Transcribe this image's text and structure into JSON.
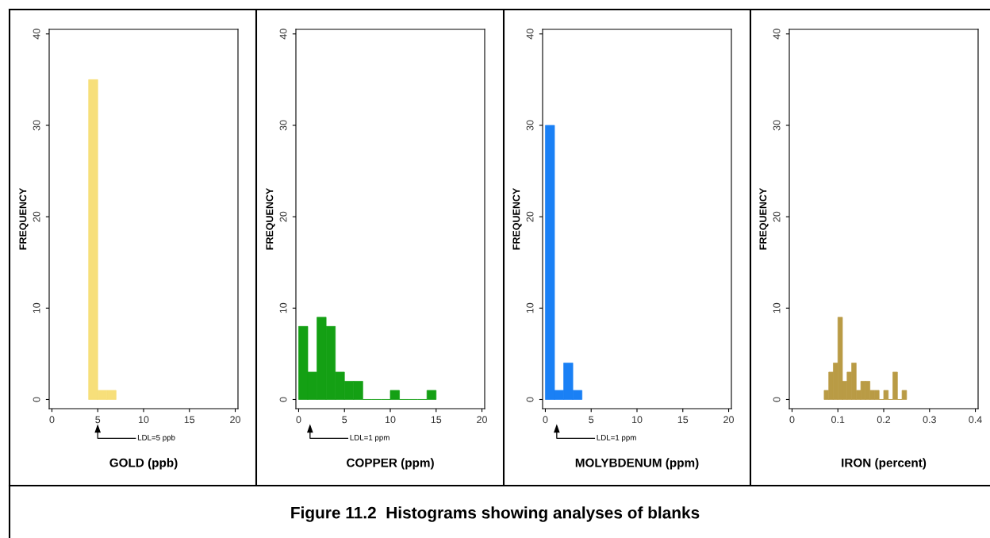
{
  "chart_data": [
    {
      "type": "histogram",
      "xlabel": "GOLD (ppb)",
      "ylabel": "FREQUENCY",
      "bins": [
        4,
        5,
        6,
        7
      ],
      "values": [
        35,
        1,
        1
      ],
      "color": "#f7df7a",
      "xlim": [
        -0.3,
        20.3
      ],
      "ylim": [
        -1,
        40.5
      ],
      "xticks": [
        0,
        5,
        10,
        15,
        20
      ],
      "yticks": [
        0,
        10,
        20,
        30,
        40
      ],
      "grid": false,
      "annotations": [
        "LDL=5 ppb",
        "Figure 11.2  Histograms showing analyses of blanks"
      ]
    },
    {
      "type": "histogram",
      "xlabel": "COPPER (ppm)",
      "ylabel": "FREQUENCY",
      "bins": [
        0,
        1,
        2,
        3,
        4,
        5,
        6,
        7,
        8,
        9,
        10,
        11,
        12,
        13,
        14,
        15
      ],
      "values": [
        8,
        3,
        9,
        8,
        3,
        2,
        2,
        0,
        0,
        0,
        1,
        0,
        0,
        0,
        1
      ],
      "color": "#14a014",
      "xlim": [
        -0.3,
        20.3
      ],
      "ylim": [
        -1,
        40.5
      ],
      "xticks": [
        0,
        5,
        10,
        15,
        20
      ],
      "yticks": [
        0,
        10,
        20,
        30,
        40
      ],
      "grid": false,
      "annotations": [
        "LDL=1 ppm"
      ]
    },
    {
      "type": "histogram",
      "xlabel": "MOLYBDENUM (ppm)",
      "ylabel": "FREQUENCY",
      "bins": [
        0,
        1,
        2,
        3,
        4
      ],
      "values": [
        30,
        1,
        4,
        1
      ],
      "color": "#1a80f5",
      "xlim": [
        -0.3,
        20.3
      ],
      "ylim": [
        -1,
        40.5
      ],
      "xticks": [
        0,
        5,
        10,
        15,
        20
      ],
      "yticks": [
        0,
        10,
        20,
        30,
        40
      ],
      "grid": false,
      "annotations": [
        "LDL=1 ppm"
      ]
    },
    {
      "type": "histogram",
      "xlabel": "IRON (percent)",
      "ylabel": "FREQUENCY",
      "bins": [
        0.07,
        0.08,
        0.09,
        0.1,
        0.11,
        0.12,
        0.13,
        0.14,
        0.15,
        0.16,
        0.17,
        0.18,
        0.19,
        0.2,
        0.21,
        0.22,
        0.23,
        0.24,
        0.25
      ],
      "values": [
        1,
        3,
        4,
        9,
        2,
        3,
        4,
        1,
        2,
        2,
        1,
        1,
        0,
        1,
        0,
        3,
        0,
        1
      ],
      "color": "#b99b45",
      "xlim": [
        -0.006,
        0.406
      ],
      "ylim": [
        -1,
        40.5
      ],
      "xticks": [
        0,
        0.1,
        0.2,
        0.3,
        0.4
      ],
      "yticks": [
        0,
        10,
        20,
        30,
        40
      ],
      "grid": false
    }
  ]
}
